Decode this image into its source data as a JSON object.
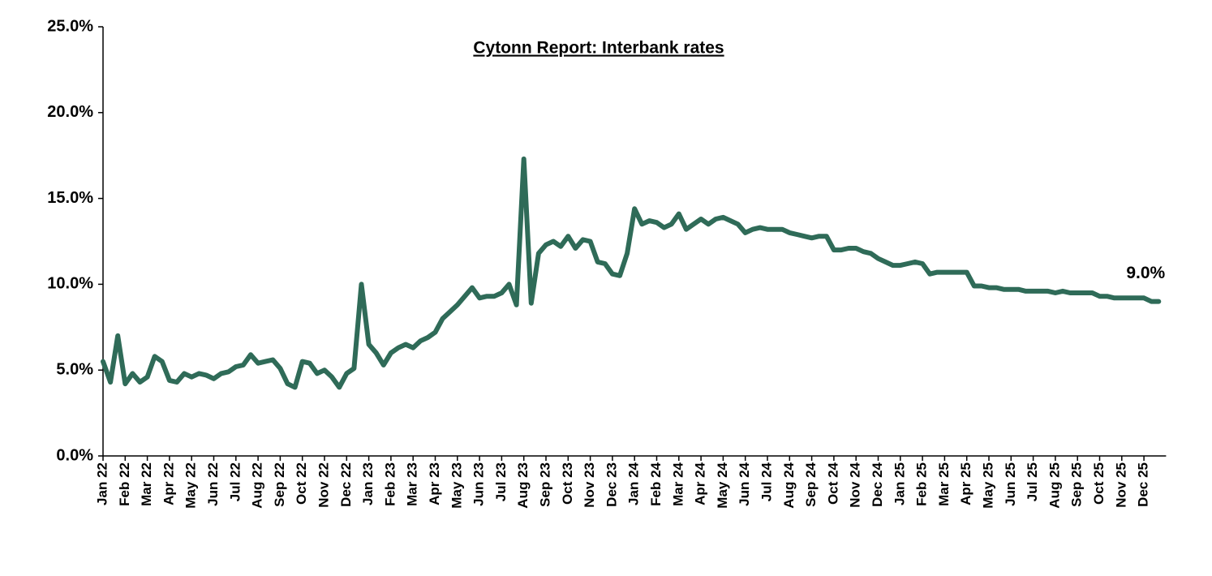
{
  "chart_data": {
    "type": "line",
    "title": "Cytonn Report: Interbank rates",
    "annotation": "9.0%",
    "color": "#2f6b58",
    "categories": [
      "Jan 22",
      null,
      null,
      "Feb 22",
      null,
      null,
      "Mar 22",
      null,
      null,
      "Apr 22",
      null,
      null,
      "May 22",
      null,
      null,
      "Jun 22",
      null,
      null,
      "Jul 22",
      null,
      null,
      "Aug 22",
      null,
      null,
      "Sep 22",
      null,
      null,
      "Oct 22",
      null,
      null,
      "Nov 22",
      null,
      null,
      "Dec 22",
      null,
      null,
      "Jan 23",
      null,
      null,
      "Feb 23",
      null,
      null,
      "Mar 23",
      null,
      null,
      "Apr 23",
      null,
      null,
      "May 23",
      null,
      null,
      "Jun 23",
      null,
      null,
      "Jul 23",
      null,
      null,
      "Aug 23",
      null,
      null,
      "Sep 23",
      null,
      null,
      "Oct 23",
      null,
      null,
      "Nov 23",
      null,
      null,
      "Dec 23",
      null,
      null,
      "Jan 24",
      null,
      null,
      "Feb 24",
      null,
      null,
      "Mar 24",
      null,
      null,
      "Apr 24",
      null,
      null,
      "May 24",
      null,
      null,
      "Jun 24",
      null,
      null,
      "Jul 24",
      null,
      null,
      "Aug 24",
      null,
      null,
      "Sep 24",
      null,
      null,
      "Oct 24",
      null,
      null,
      "Nov 24",
      null,
      null,
      "Dec 24",
      null,
      null,
      "Jan 25",
      null,
      null,
      "Feb 25",
      null,
      null,
      "Mar 25",
      null,
      null,
      "Apr 25",
      null,
      null,
      "May 25",
      null,
      null,
      "Jun 25",
      null,
      null,
      "Jul 25",
      null,
      null,
      "Aug 25",
      null,
      null,
      "Sep 25",
      null,
      null,
      "Oct 25",
      null,
      null,
      "Nov 25",
      null,
      null,
      "Dec 25",
      null,
      null
    ],
    "values": [
      5.5,
      4.3,
      7.0,
      4.2,
      4.8,
      4.3,
      4.6,
      5.8,
      5.5,
      4.4,
      4.3,
      4.8,
      4.6,
      4.8,
      4.7,
      4.5,
      4.8,
      4.9,
      5.2,
      5.3,
      5.9,
      5.4,
      5.5,
      5.6,
      5.1,
      4.2,
      4.0,
      5.5,
      5.4,
      4.8,
      5.0,
      4.6,
      4.0,
      4.8,
      5.1,
      10.0,
      6.5,
      6.0,
      5.3,
      6.0,
      6.3,
      6.5,
      6.3,
      6.7,
      6.9,
      7.2,
      8.0,
      8.4,
      8.8,
      9.3,
      9.8,
      9.2,
      9.3,
      9.3,
      9.5,
      10.0,
      8.8,
      17.3,
      8.9,
      11.8,
      12.3,
      12.5,
      12.2,
      12.8,
      12.1,
      12.6,
      12.5,
      11.3,
      11.2,
      10.6,
      10.5,
      11.8,
      14.4,
      13.5,
      13.7,
      13.6,
      13.3,
      13.5,
      14.1,
      13.2,
      13.5,
      13.8,
      13.5,
      13.8,
      13.9,
      13.7,
      13.5,
      13.0,
      13.2,
      13.3,
      13.2,
      13.2,
      13.2,
      13.0,
      12.9,
      12.8,
      12.7,
      12.8,
      12.8,
      12.0,
      12.0,
      12.1,
      12.1,
      11.9,
      11.8,
      11.5,
      11.3,
      11.1,
      11.1,
      11.2,
      11.3,
      11.2,
      10.6,
      10.7,
      10.7,
      10.7,
      10.7,
      10.7,
      9.9,
      9.9,
      9.8,
      9.8,
      9.7,
      9.7,
      9.7,
      9.6,
      9.6,
      9.6,
      9.6,
      9.5,
      9.6,
      9.5,
      9.5,
      9.5,
      9.5,
      9.3,
      9.3,
      9.2,
      9.2,
      9.2,
      9.2,
      9.2,
      9.0,
      9.0
    ],
    "ylim": [
      0,
      25
    ],
    "yticks": [
      {
        "value": 0,
        "label": "0.0%"
      },
      {
        "value": 5,
        "label": "5.0%"
      },
      {
        "value": 10,
        "label": "10.0%"
      },
      {
        "value": 15,
        "label": "15.0%"
      },
      {
        "value": 20,
        "label": "20.0%"
      },
      {
        "value": 25,
        "label": "25.0%"
      }
    ],
    "grid": false
  }
}
